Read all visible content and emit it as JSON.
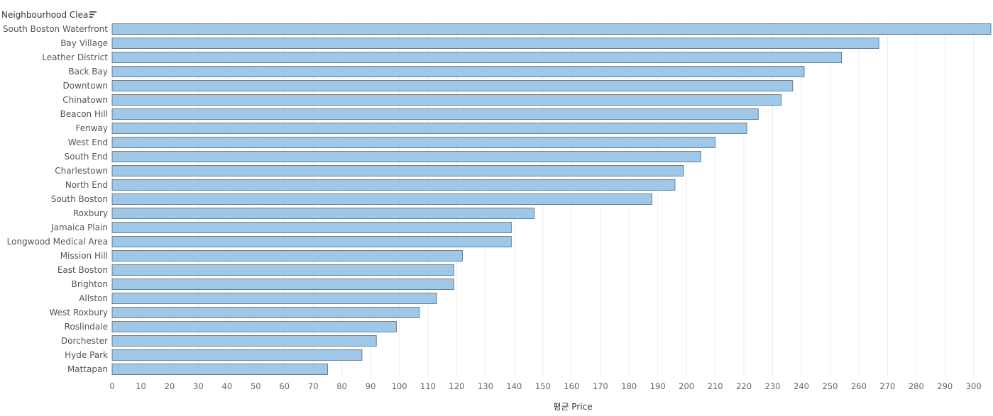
{
  "header": {
    "field_label": "Neighbourhood Clea.."
  },
  "icons": {
    "sort": "sort-descending-icon"
  },
  "colors": {
    "bar_fill": "#9fc8e8",
    "bar_stroke": "#5a6670",
    "grid": "#ececec"
  },
  "chart_data": {
    "type": "bar",
    "orientation": "horizontal",
    "categories": [
      "South Boston Waterfront",
      "Bay Village",
      "Leather District",
      "Back Bay",
      "Downtown",
      "Chinatown",
      "Beacon Hill",
      "Fenway",
      "West End",
      "South End",
      "Charlestown",
      "North End",
      "South Boston",
      "Roxbury",
      "Jamaica Plain",
      "Longwood Medical Area",
      "Mission Hill",
      "East Boston",
      "Brighton",
      "Allston",
      "West Roxbury",
      "Roslindale",
      "Dorchester",
      "Hyde Park",
      "Mattapan"
    ],
    "values": [
      306,
      267,
      254,
      241,
      237,
      233,
      225,
      221,
      210,
      205,
      199,
      196,
      188,
      147,
      139,
      139,
      122,
      119,
      119,
      113,
      107,
      99,
      92,
      87,
      75
    ],
    "xlabel": "평균 Price",
    "xlim": [
      0,
      306
    ],
    "xticks": [
      "0",
      "10",
      "20",
      "30",
      "40",
      "50",
      "60",
      "70",
      "80",
      "90",
      "100",
      "110",
      "120",
      "130",
      "140",
      "150",
      "160",
      "170",
      "180",
      "190",
      "200",
      "210",
      "220",
      "230",
      "240",
      "250",
      "260",
      "270",
      "280",
      "290",
      "300"
    ],
    "grid": true,
    "legend": "none"
  }
}
